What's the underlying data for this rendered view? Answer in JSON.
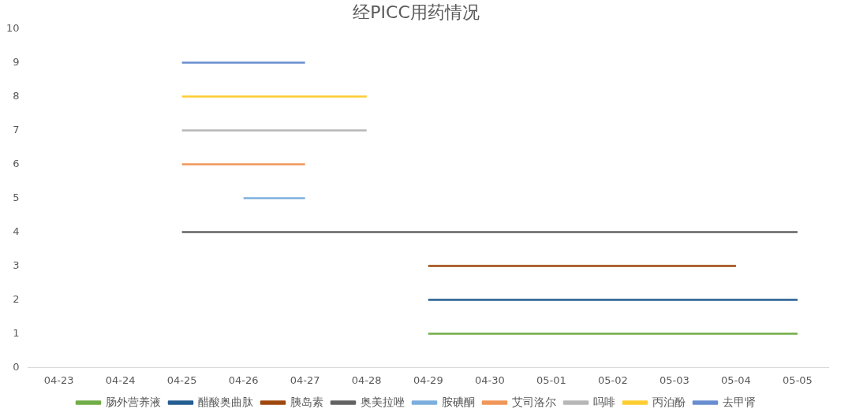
{
  "chart_data": {
    "type": "line",
    "title": "经PICC用药情况",
    "categories": [
      "04-23",
      "04-24",
      "04-25",
      "04-26",
      "04-27",
      "04-28",
      "04-29",
      "04-30",
      "05-01",
      "05-02",
      "05-03",
      "05-04",
      "05-05"
    ],
    "series": [
      {
        "name": "肠外营养液",
        "color": "#70ad47",
        "values": [
          null,
          null,
          null,
          null,
          null,
          null,
          1,
          1,
          1,
          1,
          1,
          1,
          1
        ]
      },
      {
        "name": "醋酸奥曲肽",
        "color": "#255e91",
        "values": [
          null,
          null,
          null,
          null,
          null,
          null,
          2,
          2,
          2,
          2,
          2,
          2,
          2
        ]
      },
      {
        "name": "胰岛素",
        "color": "#9e480e",
        "values": [
          null,
          null,
          null,
          null,
          null,
          null,
          3,
          3,
          3,
          3,
          3,
          3,
          null
        ]
      },
      {
        "name": "奥美拉唑",
        "color": "#636363",
        "values": [
          null,
          null,
          4,
          4,
          4,
          4,
          4,
          4,
          4,
          4,
          4,
          4,
          4
        ]
      },
      {
        "name": "胺碘酮",
        "color": "#7cafdd",
        "values": [
          null,
          null,
          null,
          5,
          5,
          null,
          null,
          null,
          null,
          null,
          null,
          null,
          null
        ]
      },
      {
        "name": "艾司洛尔",
        "color": "#f1975a",
        "values": [
          null,
          null,
          6,
          6,
          6,
          null,
          null,
          null,
          null,
          null,
          null,
          null,
          null
        ]
      },
      {
        "name": "吗啡",
        "color": "#b7b7b7",
        "values": [
          null,
          null,
          7,
          7,
          7,
          7,
          null,
          null,
          null,
          null,
          null,
          null,
          null
        ]
      },
      {
        "name": "丙泊酚",
        "color": "#ffcd33",
        "values": [
          null,
          null,
          8,
          8,
          8,
          8,
          null,
          null,
          null,
          null,
          null,
          null,
          null
        ]
      },
      {
        "name": "去甲肾",
        "color": "#698ed0",
        "values": [
          null,
          null,
          9,
          9,
          9,
          null,
          null,
          null,
          null,
          null,
          null,
          null,
          null
        ]
      }
    ],
    "ylim": [
      0,
      10
    ],
    "yticks": [
      0,
      1,
      2,
      3,
      4,
      5,
      6,
      7,
      8,
      9,
      10
    ],
    "grid": false,
    "legend": "bottom",
    "marker": "none",
    "line_style": "solid"
  }
}
